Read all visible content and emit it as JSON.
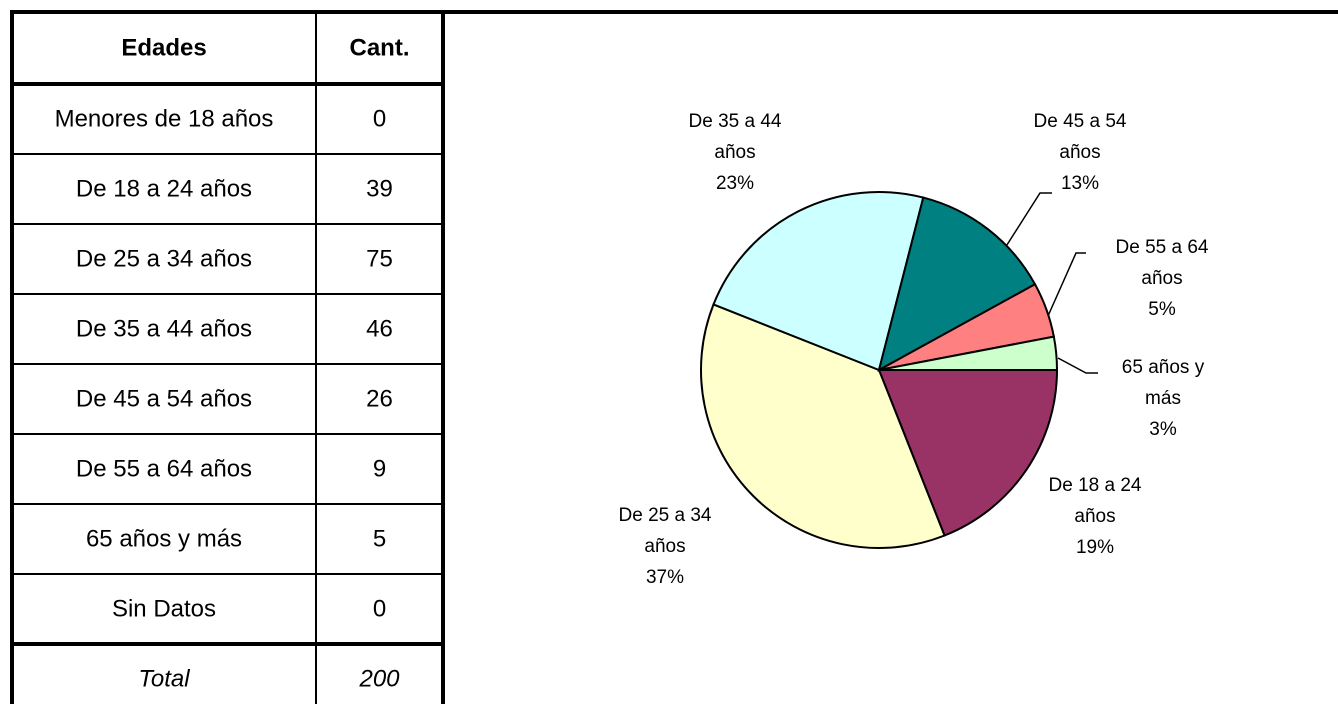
{
  "table": {
    "header": [
      "Edades",
      "Cant."
    ],
    "rows": [
      [
        "Menores de 18 años",
        0
      ],
      [
        "De 18 a 24 años",
        39
      ],
      [
        "De 25 a 34 años",
        75
      ],
      [
        "De 35 a 44 años",
        46
      ],
      [
        "De 45 a 54 años",
        26
      ],
      [
        "De 55 a 64 años",
        9
      ],
      [
        "65 años y más",
        5
      ],
      [
        "Sin Datos",
        0
      ]
    ],
    "total": [
      "Total",
      200
    ]
  },
  "chart_data": {
    "type": "pie",
    "categories": [
      "De 18 a 24 años",
      "De 25 a 34 años",
      "De 35 a 44 años",
      "De 45 a 54 años",
      "De 55 a 64 años",
      "65 años y más"
    ],
    "values": [
      19,
      37,
      23,
      13,
      5,
      3
    ],
    "value_labels": [
      "19%",
      "37%",
      "23%",
      "13%",
      "5%",
      "3%"
    ],
    "colors": [
      "#993366",
      "#ffffcc",
      "#ccffff",
      "#008080",
      "#ff8080",
      "#ccffcc"
    ]
  }
}
